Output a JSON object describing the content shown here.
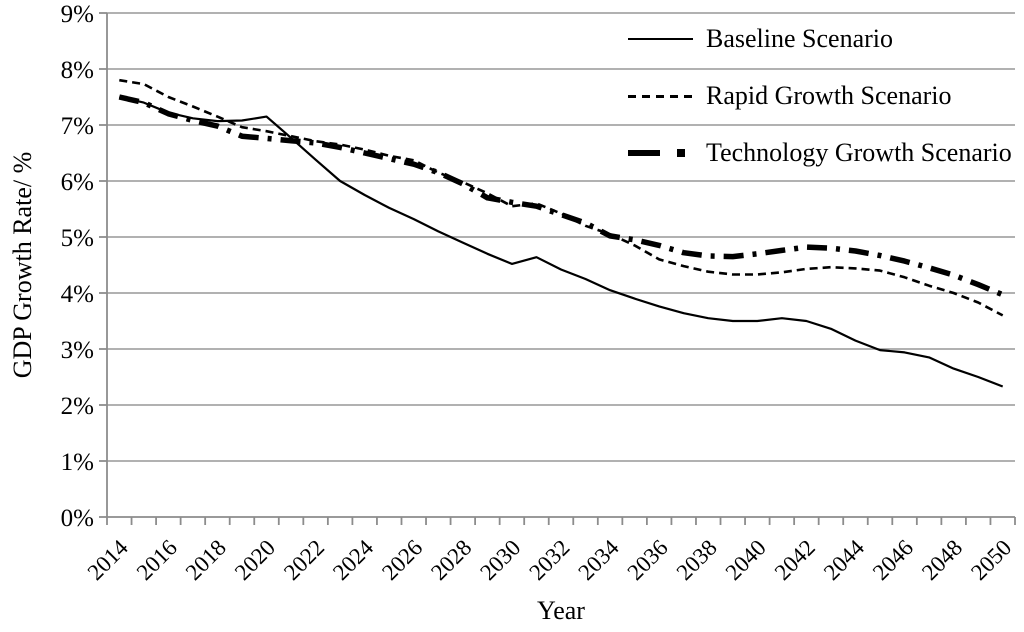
{
  "chart_data": {
    "type": "line",
    "title": "",
    "xlabel": "Year",
    "ylabel": "GDP Growth Rate/ %",
    "ylim": [
      0,
      9
    ],
    "grid": "horizontal",
    "legend_position": "top-right-inside",
    "x": [
      2014,
      2015,
      2016,
      2017,
      2018,
      2019,
      2020,
      2021,
      2022,
      2023,
      2024,
      2025,
      2026,
      2027,
      2028,
      2029,
      2030,
      2031,
      2032,
      2033,
      2034,
      2035,
      2036,
      2037,
      2038,
      2039,
      2040,
      2041,
      2042,
      2043,
      2044,
      2045,
      2046,
      2047,
      2048,
      2049,
      2050
    ],
    "x_tick_labels": [
      "2014",
      "2016",
      "2018",
      "2020",
      "2022",
      "2024",
      "2026",
      "2028",
      "2030",
      "2032",
      "2034",
      "2036",
      "2038",
      "2040",
      "2042",
      "2044",
      "2046",
      "2048",
      "2050"
    ],
    "y_tick_labels": [
      "0%",
      "1%",
      "2%",
      "3%",
      "4%",
      "5%",
      "6%",
      "7%",
      "8%",
      "9%"
    ],
    "series": [
      {
        "name": "Baseline Scenario",
        "style": "solid-thin",
        "values": [
          7.5,
          7.4,
          7.22,
          7.12,
          7.07,
          7.08,
          7.15,
          6.77,
          6.38,
          6.0,
          5.75,
          5.52,
          5.32,
          5.1,
          4.9,
          4.7,
          4.52,
          4.64,
          4.42,
          4.25,
          4.05,
          3.9,
          3.76,
          3.64,
          3.55,
          3.5,
          3.5,
          3.55,
          3.5,
          3.36,
          3.15,
          2.98,
          2.94,
          2.85,
          2.65,
          2.5,
          2.33
        ]
      },
      {
        "name": "Rapid Growth Scenario",
        "style": "dashed",
        "values": [
          7.8,
          7.73,
          7.5,
          7.33,
          7.15,
          6.96,
          6.89,
          6.8,
          6.71,
          6.65,
          6.56,
          6.45,
          6.37,
          6.15,
          5.98,
          5.78,
          5.55,
          5.6,
          5.42,
          5.2,
          5.05,
          4.85,
          4.6,
          4.48,
          4.38,
          4.33,
          4.33,
          4.37,
          4.43,
          4.46,
          4.44,
          4.4,
          4.28,
          4.13,
          4.0,
          3.83,
          3.6
        ]
      },
      {
        "name": "Technology Growth Scenario",
        "style": "thick-dash-dot",
        "values": [
          7.5,
          7.4,
          7.2,
          7.08,
          6.98,
          6.8,
          6.76,
          6.72,
          6.68,
          6.6,
          6.5,
          6.4,
          6.3,
          6.15,
          5.95,
          5.7,
          5.62,
          5.55,
          5.4,
          5.25,
          5.02,
          4.95,
          4.85,
          4.72,
          4.66,
          4.65,
          4.7,
          4.76,
          4.82,
          4.8,
          4.75,
          4.67,
          4.57,
          4.45,
          4.32,
          4.15,
          3.97
        ]
      }
    ],
    "colors": {
      "line": "#000000",
      "grid": "#a6a6a6",
      "axis": "#8c8c8c",
      "text": "#000000"
    }
  }
}
